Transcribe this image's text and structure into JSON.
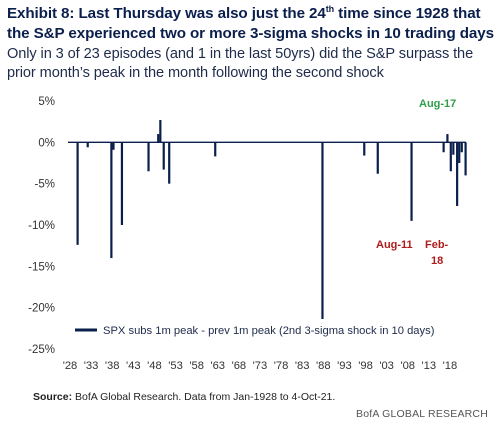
{
  "header": {
    "title_prefix": "Exhibit 8: Last Thursday was also just the 24",
    "title_sup": "th",
    "title_suffix": " time since 1928 that the S&P experienced two or more 3-sigma shocks in 10 trading days",
    "subtitle": "Only in 3 of 23 episodes (and 1 in the last 50yrs) did the S&P surpass the prior month’s peak in the month following the second shock"
  },
  "chart_data": {
    "type": "bar",
    "title": "",
    "xlabel": "",
    "ylabel": "",
    "ylim": [
      -25,
      5
    ],
    "y_ticks": [
      5,
      0,
      -5,
      -10,
      -15,
      -20,
      -25
    ],
    "y_tick_labels": [
      "5%",
      "0%",
      "-5%",
      "-10%",
      "-15%",
      "-20%",
      "-25%"
    ],
    "x_range": [
      1928,
      2021.8
    ],
    "x_tick_labels": [
      "'28",
      "'33",
      "'38",
      "'43",
      "'48",
      "'53",
      "'58",
      "'63",
      "'68",
      "'73",
      "'78",
      "'83",
      "'88",
      "'93",
      "'98",
      "'03",
      "'08",
      "'13",
      "'18"
    ],
    "x_tick_years": [
      1928,
      1933,
      1938,
      1943,
      1948,
      1953,
      1958,
      1963,
      1968,
      1973,
      1978,
      1983,
      1988,
      1993,
      1998,
      2003,
      2008,
      2013,
      2018
    ],
    "grid": false,
    "legend_position": "bottom-left",
    "series": [
      {
        "name": "SPX subs 1m peak - prev 1m peak (2nd 3-sigma shock in 10 days)",
        "color": "#0b1f4d",
        "points": [
          {
            "x": 1929.8,
            "y": -12.4
          },
          {
            "x": 1932.2,
            "y": -0.6
          },
          {
            "x": 1937.8,
            "y": -14.0
          },
          {
            "x": 1938.3,
            "y": -0.9
          },
          {
            "x": 1940.3,
            "y": -10.0
          },
          {
            "x": 1946.6,
            "y": -3.5
          },
          {
            "x": 1948.9,
            "y": 1.0
          },
          {
            "x": 1949.4,
            "y": 2.7
          },
          {
            "x": 1950.2,
            "y": -3.3
          },
          {
            "x": 1951.5,
            "y": -5.0
          },
          {
            "x": 1962.4,
            "y": -1.7
          },
          {
            "x": 1987.8,
            "y": -21.5
          },
          {
            "x": 1997.7,
            "y": -1.6
          },
          {
            "x": 2000.9,
            "y": -3.8
          },
          {
            "x": 2008.9,
            "y": -9.5
          },
          {
            "x": 2016.5,
            "y": -1.2
          },
          {
            "x": 2017.4,
            "y": 1.0
          },
          {
            "x": 2018.2,
            "y": -3.5
          },
          {
            "x": 2018.8,
            "y": -1.5
          },
          {
            "x": 2019.7,
            "y": -7.7
          },
          {
            "x": 2020.2,
            "y": -2.5
          },
          {
            "x": 2020.8,
            "y": -1.2
          },
          {
            "x": 2021.7,
            "y": -4.0
          }
        ]
      }
    ],
    "annotations": [
      {
        "text": "Aug-17",
        "color": "#2e9e48"
      },
      {
        "text": "Aug-11",
        "color": "#b01c1c"
      },
      {
        "text_line1": "Feb-",
        "text_line2": "18",
        "color": "#b01c1c"
      }
    ]
  },
  "footer": {
    "source_label": "Source:",
    "source_text": " BofA Global Research. Data from Jan-1928 to 4-Oct-21.",
    "brand": "BofA GLOBAL RESEARCH"
  }
}
